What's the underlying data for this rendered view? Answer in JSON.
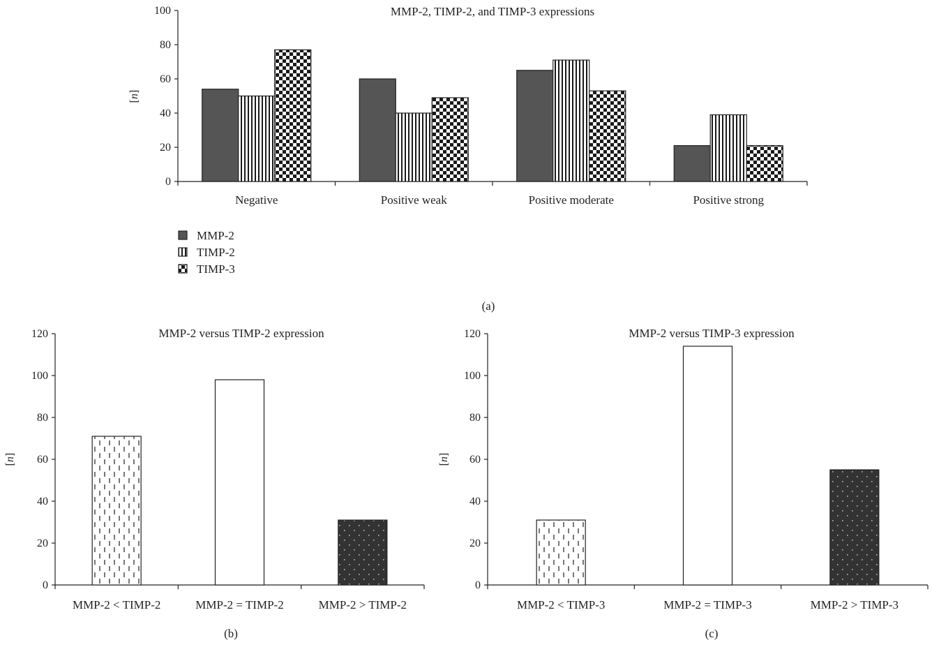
{
  "chart_data": [
    {
      "id": "a",
      "type": "bar",
      "title": "MMP-2, TIMP-2, and TIMP-3 expressions",
      "ylabel": "[n]",
      "xlabel": "",
      "caption": "(a)",
      "categories": [
        "Negative",
        "Positive weak",
        "Positive moderate",
        "Positive strong"
      ],
      "ylim": [
        0,
        100
      ],
      "yticks": [
        0,
        20,
        40,
        60,
        80,
        100
      ],
      "series": [
        {
          "name": "MMP-2",
          "pattern": "solid-dark",
          "values": [
            54,
            60,
            65,
            21
          ]
        },
        {
          "name": "TIMP-2",
          "pattern": "vertical-stripes",
          "values": [
            50,
            40,
            71,
            39
          ]
        },
        {
          "name": "TIMP-3",
          "pattern": "checker",
          "values": [
            77,
            49,
            53,
            21
          ]
        }
      ],
      "legend_position": "bottom-left",
      "grid": false
    },
    {
      "id": "b",
      "type": "bar",
      "title": "MMP-2 versus TIMP-2 expression",
      "ylabel": "[n]",
      "xlabel": "",
      "caption": "(b)",
      "categories": [
        "MMP-2 < TIMP-2",
        "MMP-2 = TIMP-2",
        "MMP-2 > TIMP-2"
      ],
      "values": [
        71,
        98,
        31
      ],
      "patterns": [
        "dashed-light",
        "white",
        "dotted-dark"
      ],
      "ylim": [
        0,
        120
      ],
      "yticks": [
        0,
        20,
        40,
        60,
        80,
        100,
        120
      ],
      "grid": false
    },
    {
      "id": "c",
      "type": "bar",
      "title": "MMP-2 versus TIMP-3 expression",
      "ylabel": "[n]",
      "xlabel": "",
      "caption": "(c)",
      "categories": [
        "MMP-2 < TIMP-3",
        "MMP-2 = TIMP-3",
        "MMP-2 > TIMP-3"
      ],
      "values": [
        31,
        114,
        55
      ],
      "patterns": [
        "dashed-light",
        "white",
        "dotted-dark"
      ],
      "ylim": [
        0,
        120
      ],
      "yticks": [
        0,
        20,
        40,
        60,
        80,
        100,
        120
      ],
      "grid": false
    }
  ]
}
